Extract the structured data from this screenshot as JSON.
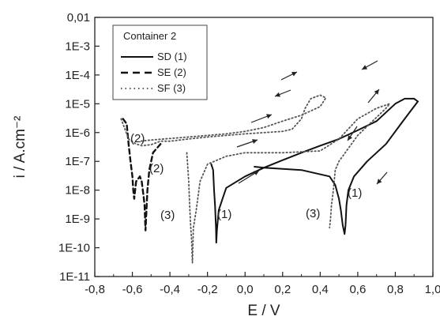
{
  "chart_data": {
    "type": "line",
    "title": "",
    "xlabel": "E / V",
    "ylabel": "i / A.cm⁻²",
    "xlim": [
      -0.8,
      1.0
    ],
    "ylim": [
      1e-11,
      0.01
    ],
    "yscale": "log",
    "x_ticks": [
      "-0,8",
      "-0,6",
      "-0,4",
      "-0,2",
      "0,0",
      "0,2",
      "0,4",
      "0,6",
      "0,8",
      "1,0"
    ],
    "y_ticks": [
      "0,01",
      "1E-3",
      "1E-4",
      "1E-5",
      "1E-6",
      "1E-7",
      "1E-8",
      "1E-9",
      "1E-10",
      "1E-11"
    ],
    "legend": {
      "title": "Container 2",
      "position": "top-left",
      "entries": [
        {
          "label": "SD (1)",
          "style": "solid"
        },
        {
          "label": "SE (2)",
          "style": "dashed"
        },
        {
          "label": "SF (3)",
          "style": "dotted"
        }
      ]
    },
    "series": [
      {
        "name": "SD (1)",
        "style": "solid",
        "forward": [
          [
            -0.18,
            8e-08
          ],
          [
            -0.17,
            5e-08
          ],
          [
            -0.165,
            1e-08
          ],
          [
            -0.16,
            3e-09
          ],
          [
            -0.155,
            5e-10
          ],
          [
            -0.153,
            1.5e-10
          ],
          [
            -0.15,
            4e-10
          ],
          [
            -0.14,
            2e-09
          ],
          [
            -0.12,
            5e-09
          ],
          [
            -0.1,
            1.2e-08
          ],
          [
            0.0,
            3e-08
          ],
          [
            0.1,
            6e-08
          ],
          [
            0.2,
            1.1e-07
          ],
          [
            0.3,
            2e-07
          ],
          [
            0.4,
            3.5e-07
          ],
          [
            0.5,
            6e-07
          ],
          [
            0.6,
            1.2e-06
          ],
          [
            0.7,
            2.5e-06
          ],
          [
            0.75,
            5e-06
          ],
          [
            0.8,
            1e-05
          ],
          [
            0.85,
            1.5e-05
          ],
          [
            0.9,
            1.5e-05
          ]
        ],
        "reverse": [
          [
            0.9,
            1.5e-05
          ],
          [
            0.92,
            1.2e-05
          ],
          [
            0.85,
            3e-06
          ],
          [
            0.75,
            4e-07
          ],
          [
            0.65,
            1e-07
          ],
          [
            0.58,
            3e-08
          ],
          [
            0.55,
            1e-08
          ],
          [
            0.54,
            3e-09
          ],
          [
            0.535,
            6e-10
          ],
          [
            0.53,
            3e-10
          ],
          [
            0.52,
            6e-10
          ],
          [
            0.51,
            2e-09
          ],
          [
            0.5,
            5e-09
          ],
          [
            0.48,
            1.5e-08
          ],
          [
            0.45,
            3e-08
          ],
          [
            0.3,
            5e-08
          ],
          [
            0.1,
            6e-08
          ],
          [
            0.05,
            6.5e-08
          ]
        ]
      },
      {
        "name": "SE (2)",
        "style": "dashed",
        "forward": [
          [
            -0.65,
            3e-06
          ],
          [
            -0.63,
            2e-06
          ],
          [
            -0.62,
            4e-07
          ],
          [
            -0.61,
            1e-07
          ],
          [
            -0.6,
            3e-08
          ],
          [
            -0.595,
            1e-08
          ],
          [
            -0.59,
            5e-09
          ],
          [
            -0.58,
            2e-08
          ],
          [
            -0.56,
            3e-08
          ],
          [
            -0.55,
            2e-08
          ],
          [
            -0.54,
            6e-09
          ],
          [
            -0.535,
            3e-09
          ],
          [
            -0.53,
            4e-10
          ],
          [
            -0.525,
            2e-09
          ],
          [
            -0.52,
            1e-08
          ],
          [
            -0.51,
            5e-08
          ],
          [
            -0.49,
            2e-07
          ],
          [
            -0.45,
            4e-07
          ]
        ],
        "reverse": []
      },
      {
        "name": "SF (3)",
        "style": "dotted",
        "forward": [
          [
            -0.66,
            3e-06
          ],
          [
            -0.62,
            6e-07
          ],
          [
            -0.58,
            4e-07
          ],
          [
            -0.55,
            3.5e-07
          ],
          [
            -0.5,
            3.8e-07
          ],
          [
            -0.45,
            5e-07
          ],
          [
            -0.4,
            5e-07
          ],
          [
            -0.3,
            6e-07
          ],
          [
            -0.2,
            7e-07
          ],
          [
            0.0,
            9e-07
          ],
          [
            0.2,
            1.1e-06
          ],
          [
            0.25,
            1.3e-06
          ],
          [
            0.3,
            3e-06
          ],
          [
            0.32,
            7e-06
          ],
          [
            0.35,
            1.5e-05
          ],
          [
            0.4,
            2e-05
          ],
          [
            0.43,
            1.6e-05
          ],
          [
            0.4,
            8e-06
          ],
          [
            0.3,
            4e-06
          ],
          [
            0.2,
            2.5e-06
          ],
          [
            0.1,
            1.5e-06
          ],
          [
            0.0,
            1.1e-06
          ],
          [
            -0.1,
            9e-07
          ],
          [
            -0.3,
            7e-07
          ],
          [
            -0.5,
            5.5e-07
          ],
          [
            -0.56,
            5e-07
          ]
        ],
        "reverse": [
          [
            -0.31,
            2e-07
          ],
          [
            -0.3,
            2e-08
          ],
          [
            -0.295,
            3e-09
          ],
          [
            -0.29,
            6e-10
          ],
          [
            -0.285,
            2e-10
          ],
          [
            -0.28,
            3e-11
          ],
          [
            -0.275,
            5e-10
          ],
          [
            -0.26,
            2e-09
          ],
          [
            -0.24,
            2e-08
          ],
          [
            -0.2,
            8e-08
          ],
          [
            -0.1,
            1.5e-07
          ],
          [
            0.0,
            2e-07
          ],
          [
            0.2,
            2e-07
          ],
          [
            0.4,
            2.3e-07
          ],
          [
            0.5,
            6e-07
          ],
          [
            0.6,
            3e-06
          ],
          [
            0.7,
            7e-06
          ],
          [
            0.77,
            1e-05
          ],
          [
            0.75,
            7e-06
          ],
          [
            0.6,
            8e-07
          ],
          [
            0.5,
            1e-07
          ],
          [
            0.48,
            5e-08
          ],
          [
            0.47,
            1e-08
          ],
          [
            0.46,
            3e-09
          ],
          [
            0.455,
            1e-09
          ],
          [
            0.45,
            5e-10
          ]
        ]
      }
    ],
    "annotations": [
      {
        "text": "(1)",
        "near": "SD cathodic minimum left"
      },
      {
        "text": "(1)",
        "near": "SD reverse minimum right"
      },
      {
        "text": "(2)",
        "near": "SE upper"
      },
      {
        "text": "(2)",
        "near": "SE lower"
      },
      {
        "text": "(3)",
        "near": "SF left minimum"
      },
      {
        "text": "(3)",
        "near": "SF right minimum"
      }
    ]
  }
}
